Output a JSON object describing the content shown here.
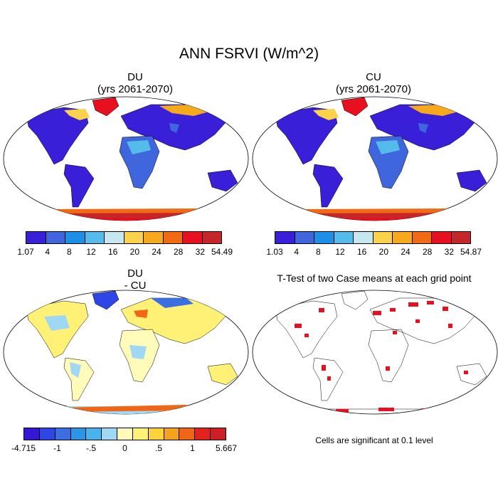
{
  "title": "ANN FSRVI (W/m^2)",
  "panels": {
    "du": {
      "title": "DU",
      "subtitle": "(yrs 2061-2070)"
    },
    "cu": {
      "title": "CU",
      "subtitle": "(yrs 2061-2070)"
    },
    "diff": {
      "title": "DU",
      "subtitle": "- CU"
    },
    "ttest": {
      "title": "T-Test of two Case means at each grid point",
      "note": "Cells are significant at 0.1 level"
    }
  },
  "colorbars": {
    "du": {
      "colors": [
        "#3a1fd8",
        "#3f66dc",
        "#1e8fe6",
        "#55bbea",
        "#c6e6f0",
        "#fbd24a",
        "#f7a91d",
        "#f26a13",
        "#e8101e",
        "#c6262a"
      ],
      "labels": [
        "1.07",
        "4",
        "8",
        "12",
        "16",
        "20",
        "24",
        "28",
        "32",
        "54.49"
      ]
    },
    "cu": {
      "colors": [
        "#3a1fd8",
        "#3f66dc",
        "#1e8fe6",
        "#55bbea",
        "#c6e6f0",
        "#fbd24a",
        "#f7a91d",
        "#f26a13",
        "#e8101e",
        "#c6262a"
      ],
      "labels": [
        "1.03",
        "4",
        "8",
        "12",
        "16",
        "20",
        "24",
        "28",
        "32",
        "54.87"
      ]
    },
    "diff": {
      "colors": [
        "#3316d6",
        "#2f46e6",
        "#3b6ee2",
        "#2d95e6",
        "#49b3ee",
        "#9fd8f4",
        "#fffbb8",
        "#fff176",
        "#fdd23a",
        "#f6a21f",
        "#f16616",
        "#e3211d",
        "#cc2026"
      ],
      "labels": [
        "-4.715",
        "-1",
        "-.5",
        "0",
        ".5",
        "1",
        "5.667"
      ]
    }
  }
}
